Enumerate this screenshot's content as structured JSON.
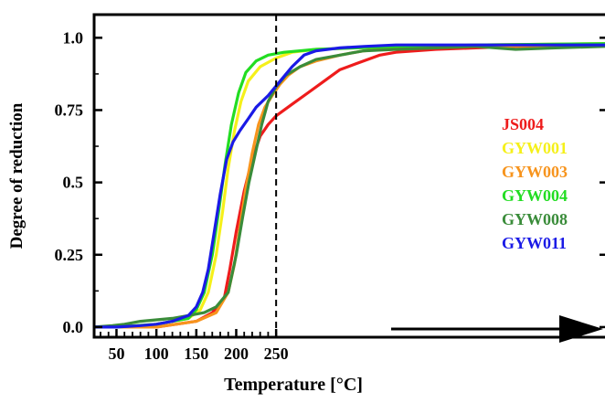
{
  "chart_data": {
    "type": "line",
    "title": "",
    "xlabel": "Temperature [°C]",
    "ylabel": "Degree of reduction",
    "xlim": [
      22,
      662
    ],
    "ylim": [
      -0.035,
      1.08
    ],
    "x_ticks": [
      50,
      100,
      150,
      200,
      250
    ],
    "x_tick_labels": [
      "50",
      "100",
      "150",
      "200",
      "250"
    ],
    "y_ticks": [
      0.0,
      0.25,
      0.5,
      0.75,
      1.0
    ],
    "y_tick_labels": [
      "0.0",
      "0.25",
      "0.5",
      "0.75",
      "1.0"
    ],
    "reference_line_x": 250,
    "grid": false,
    "legend_position": "right",
    "series": [
      {
        "name": "JS004",
        "color": "#ee1c1c",
        "points": [
          [
            22,
            0.0
          ],
          [
            50,
            0.0
          ],
          [
            100,
            0.0
          ],
          [
            150,
            0.02
          ],
          [
            170,
            0.05
          ],
          [
            185,
            0.1
          ],
          [
            192,
            0.2
          ],
          [
            200,
            0.33
          ],
          [
            210,
            0.47
          ],
          [
            220,
            0.58
          ],
          [
            230,
            0.66
          ],
          [
            240,
            0.7
          ],
          [
            250,
            0.73
          ],
          [
            270,
            0.77
          ],
          [
            290,
            0.81
          ],
          [
            310,
            0.85
          ],
          [
            330,
            0.89
          ],
          [
            350,
            0.91
          ],
          [
            380,
            0.94
          ],
          [
            400,
            0.95
          ],
          [
            450,
            0.96
          ],
          [
            500,
            0.965
          ],
          [
            550,
            0.97
          ],
          [
            600,
            0.97
          ],
          [
            662,
            0.975
          ]
        ]
      },
      {
        "name": "GYW001",
        "color": "#f5f01a",
        "points": [
          [
            22,
            0.0
          ],
          [
            50,
            0.0
          ],
          [
            100,
            0.01
          ],
          [
            140,
            0.03
          ],
          [
            155,
            0.06
          ],
          [
            165,
            0.12
          ],
          [
            175,
            0.25
          ],
          [
            183,
            0.4
          ],
          [
            190,
            0.55
          ],
          [
            198,
            0.68
          ],
          [
            206,
            0.78
          ],
          [
            215,
            0.85
          ],
          [
            230,
            0.9
          ],
          [
            250,
            0.93
          ],
          [
            270,
            0.95
          ],
          [
            300,
            0.96
          ],
          [
            350,
            0.965
          ],
          [
            400,
            0.97
          ],
          [
            500,
            0.975
          ],
          [
            662,
            0.98
          ]
        ]
      },
      {
        "name": "GYW003",
        "color": "#f7941d",
        "points": [
          [
            22,
            0.0
          ],
          [
            50,
            0.0
          ],
          [
            100,
            0.0
          ],
          [
            150,
            0.02
          ],
          [
            175,
            0.05
          ],
          [
            190,
            0.12
          ],
          [
            198,
            0.22
          ],
          [
            205,
            0.35
          ],
          [
            212,
            0.48
          ],
          [
            220,
            0.6
          ],
          [
            228,
            0.7
          ],
          [
            236,
            0.76
          ],
          [
            245,
            0.8
          ],
          [
            255,
            0.84
          ],
          [
            265,
            0.87
          ],
          [
            280,
            0.9
          ],
          [
            300,
            0.92
          ],
          [
            330,
            0.94
          ],
          [
            360,
            0.955
          ],
          [
            400,
            0.965
          ],
          [
            500,
            0.97
          ],
          [
            662,
            0.975
          ]
        ]
      },
      {
        "name": "GYW004",
        "color": "#22dd22",
        "points": [
          [
            22,
            0.0
          ],
          [
            50,
            0.0
          ],
          [
            100,
            0.01
          ],
          [
            140,
            0.03
          ],
          [
            150,
            0.06
          ],
          [
            160,
            0.12
          ],
          [
            170,
            0.25
          ],
          [
            178,
            0.4
          ],
          [
            186,
            0.56
          ],
          [
            194,
            0.7
          ],
          [
            203,
            0.81
          ],
          [
            212,
            0.88
          ],
          [
            225,
            0.92
          ],
          [
            240,
            0.94
          ],
          [
            260,
            0.95
          ],
          [
            300,
            0.96
          ],
          [
            350,
            0.965
          ],
          [
            400,
            0.97
          ],
          [
            450,
            0.97
          ],
          [
            500,
            0.975
          ],
          [
            662,
            0.98
          ]
        ]
      },
      {
        "name": "GYW008",
        "color": "#3a8c3a",
        "points": [
          [
            22,
            0.0
          ],
          [
            45,
            0.005
          ],
          [
            60,
            0.01
          ],
          [
            80,
            0.02
          ],
          [
            100,
            0.025
          ],
          [
            120,
            0.03
          ],
          [
            140,
            0.04
          ],
          [
            160,
            0.05
          ],
          [
            175,
            0.07
          ],
          [
            190,
            0.12
          ],
          [
            200,
            0.25
          ],
          [
            208,
            0.38
          ],
          [
            216,
            0.5
          ],
          [
            224,
            0.6
          ],
          [
            232,
            0.7
          ],
          [
            240,
            0.78
          ],
          [
            250,
            0.83
          ],
          [
            262,
            0.87
          ],
          [
            280,
            0.9
          ],
          [
            300,
            0.925
          ],
          [
            330,
            0.94
          ],
          [
            360,
            0.955
          ],
          [
            400,
            0.96
          ],
          [
            450,
            0.965
          ],
          [
            500,
            0.97
          ],
          [
            550,
            0.96
          ],
          [
            600,
            0.965
          ],
          [
            662,
            0.97
          ]
        ]
      },
      {
        "name": "GYW011",
        "color": "#1a1ae6",
        "points": [
          [
            22,
            0.0
          ],
          [
            50,
            0.0
          ],
          [
            80,
            0.005
          ],
          [
            100,
            0.01
          ],
          [
            120,
            0.02
          ],
          [
            140,
            0.04
          ],
          [
            150,
            0.07
          ],
          [
            158,
            0.12
          ],
          [
            165,
            0.2
          ],
          [
            172,
            0.32
          ],
          [
            180,
            0.46
          ],
          [
            188,
            0.58
          ],
          [
            196,
            0.64
          ],
          [
            205,
            0.68
          ],
          [
            215,
            0.72
          ],
          [
            225,
            0.76
          ],
          [
            240,
            0.8
          ],
          [
            255,
            0.85
          ],
          [
            270,
            0.9
          ],
          [
            285,
            0.94
          ],
          [
            300,
            0.955
          ],
          [
            330,
            0.965
          ],
          [
            360,
            0.97
          ],
          [
            400,
            0.975
          ],
          [
            450,
            0.975
          ],
          [
            500,
            0.975
          ],
          [
            662,
            0.975
          ]
        ]
      }
    ]
  }
}
